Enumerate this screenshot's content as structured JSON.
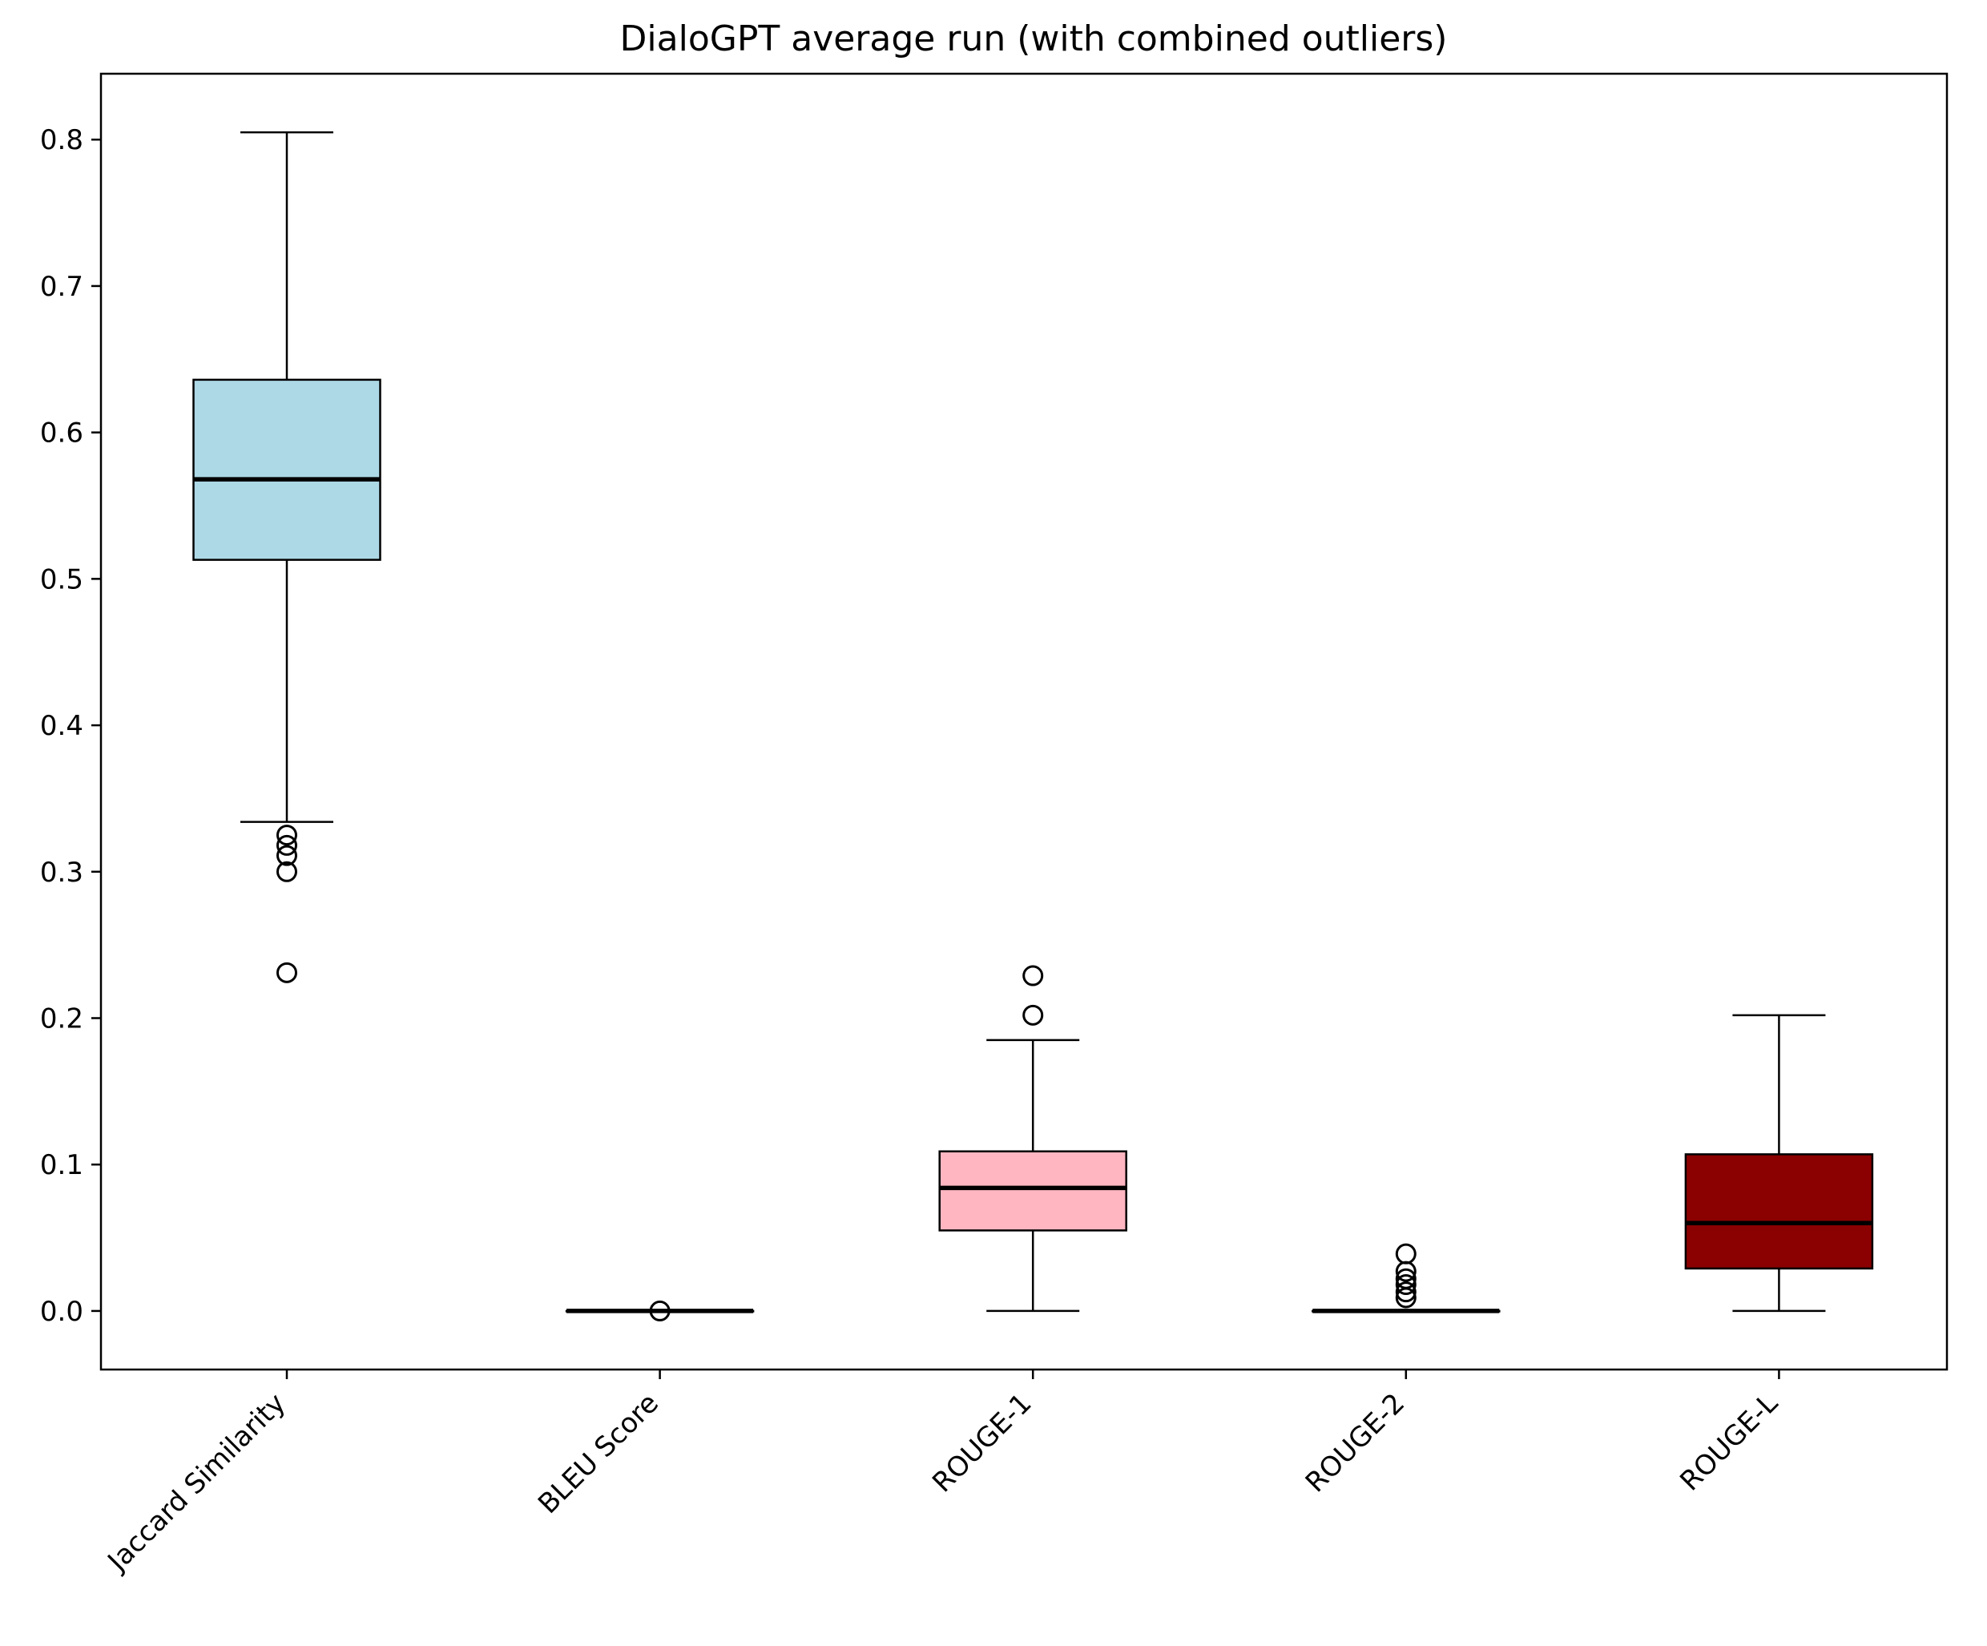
{
  "chart_data": {
    "type": "boxplot",
    "title": "DialoGPT average run (with combined outliers)",
    "xlabel": "",
    "ylabel": "",
    "ylim": [
      -0.04,
      0.845
    ],
    "yticks": [
      0.0,
      0.1,
      0.2,
      0.3,
      0.4,
      0.5,
      0.6,
      0.7,
      0.8
    ],
    "ytick_labels": [
      "0.0",
      "0.1",
      "0.2",
      "0.3",
      "0.4",
      "0.5",
      "0.6",
      "0.7",
      "0.8"
    ],
    "grid": false,
    "categories": [
      "Jaccard Similarity",
      "BLEU Score",
      "ROUGE-1",
      "ROUGE-2",
      "ROUGE-L"
    ],
    "boxes": [
      {
        "category": "Jaccard Similarity",
        "whisker_low": 0.334,
        "q1": 0.513,
        "median": 0.568,
        "q3": 0.636,
        "whisker_high": 0.805,
        "outliers": [
          0.325,
          0.318,
          0.311,
          0.3,
          0.231
        ],
        "color": "#add8e6"
      },
      {
        "category": "BLEU Score",
        "whisker_low": 0.0,
        "q1": 0.0,
        "median": 0.0,
        "q3": 0.0,
        "whisker_high": 0.0,
        "outliers": [
          0.0
        ],
        "color": "#add8e6"
      },
      {
        "category": "ROUGE-1",
        "whisker_low": 0.0,
        "q1": 0.055,
        "median": 0.084,
        "q3": 0.109,
        "whisker_high": 0.185,
        "outliers": [
          0.229,
          0.202
        ],
        "color": "#ffb6c1"
      },
      {
        "category": "ROUGE-2",
        "whisker_low": 0.0,
        "q1": 0.0,
        "median": 0.0,
        "q3": 0.0,
        "whisker_high": 0.0,
        "outliers": [
          0.039,
          0.027,
          0.022,
          0.018,
          0.013,
          0.009
        ],
        "color": "#ffb6c1"
      },
      {
        "category": "ROUGE-L",
        "whisker_low": 0.0,
        "q1": 0.029,
        "median": 0.06,
        "q3": 0.107,
        "whisker_high": 0.202,
        "outliers": [],
        "color": "#8b0000"
      }
    ]
  }
}
